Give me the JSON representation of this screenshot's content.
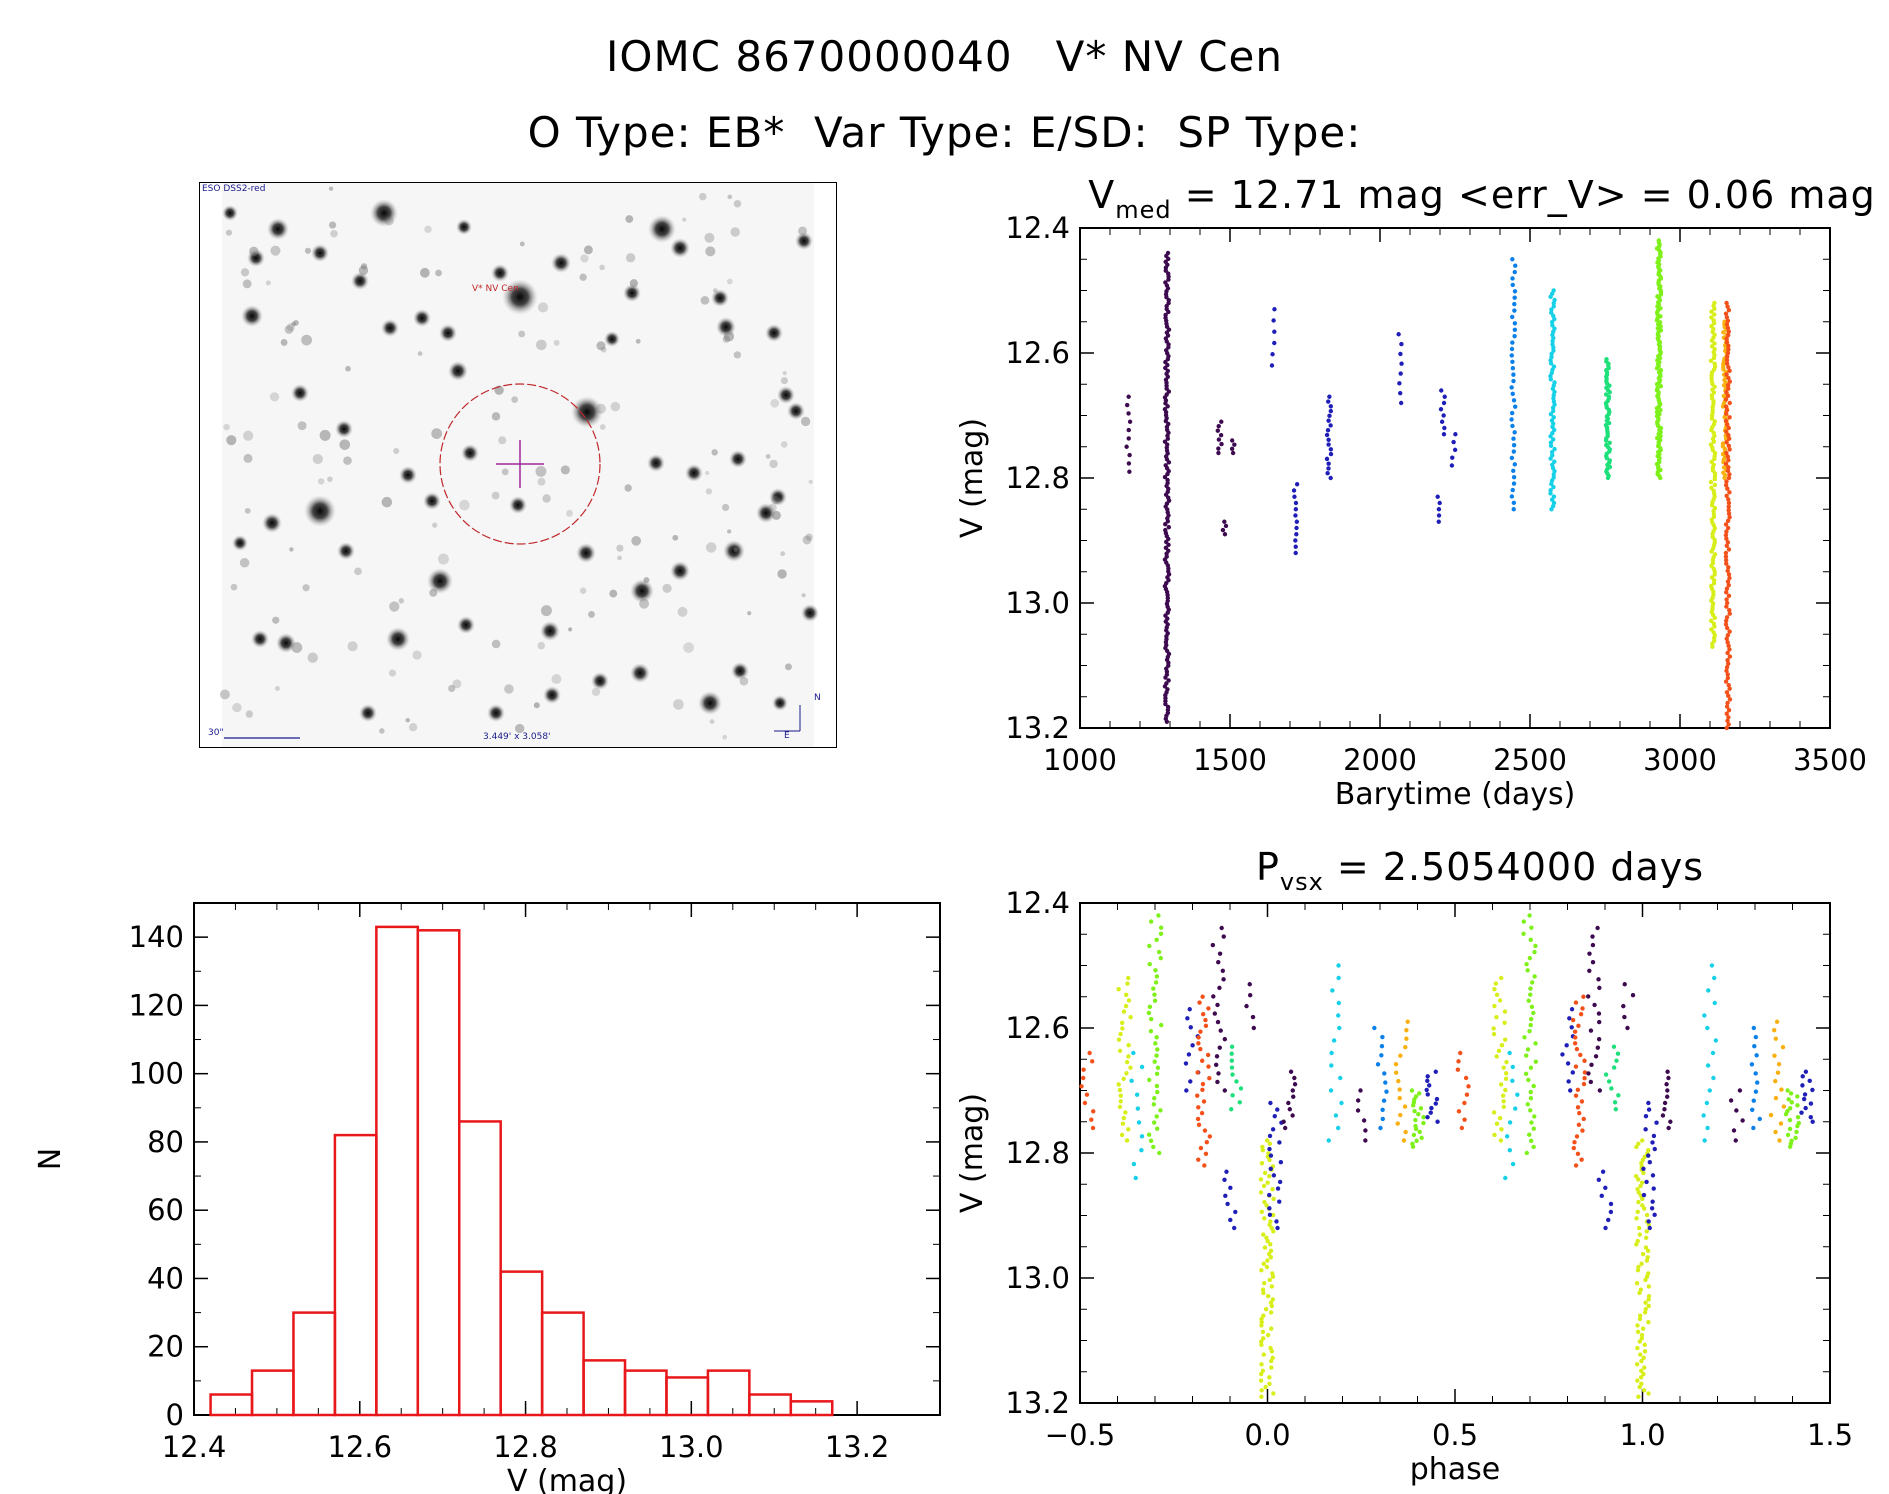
{
  "header": {
    "title_line1": "IOMC 8670000040   V* NV Cen",
    "title_line2": "O Type: EB*  Var Type: E/SD:  SP Type:"
  },
  "finder": {
    "survey_label": "ESO DSS2-red",
    "object_label": "V* NV Cen",
    "scale_label": "30\"",
    "fov_label": "3.449' x 3.058'",
    "compass_n": "N",
    "compass_e": "E"
  },
  "colors": {
    "histogram": "#e8171a",
    "circle": "#c0282b",
    "cross": "#9b2a9b",
    "palette": [
      "#3d0a4f",
      "#1f1fb8",
      "#0a80e8",
      "#16d0e8",
      "#1ee07a",
      "#7ef01a",
      "#d8ee1a",
      "#f8b010",
      "#f4501a"
    ]
  },
  "chart_data": [
    {
      "type": "scatter",
      "title": "V_med = 12.71 mag <err_V> = 0.06 mag",
      "title_main": "V",
      "title_sub": "med",
      "title_rest": " = 12.71 mag <err_V> = 0.06 mag",
      "xlabel": "Barytime (days)",
      "ylabel": "V (mag)",
      "xlim": [
        1000,
        3500
      ],
      "ylim": [
        13.2,
        12.4
      ],
      "xticks": [
        1000,
        1500,
        2000,
        2500,
        3000,
        3500
      ],
      "yticks": [
        12.4,
        12.6,
        12.8,
        13.0,
        13.2
      ],
      "xticklabels": [
        "1000",
        "1500",
        "2000",
        "2500",
        "3000",
        "3500"
      ],
      "yticklabels": [
        "12.4",
        "12.6",
        "12.8",
        "13.0",
        "13.2"
      ],
      "groups": [
        {
          "x": 1160,
          "ymin": 12.67,
          "ymax": 12.79,
          "n": 10,
          "color_index": 0
        },
        {
          "x": 1290,
          "ymin": 12.44,
          "ymax": 13.19,
          "n": 160,
          "color_index": 0
        },
        {
          "x": 1465,
          "ymin": 12.71,
          "ymax": 12.76,
          "n": 8,
          "color_index": 0
        },
        {
          "x": 1480,
          "ymin": 12.87,
          "ymax": 12.89,
          "n": 4,
          "color_index": 0
        },
        {
          "x": 1510,
          "ymin": 12.74,
          "ymax": 12.76,
          "n": 4,
          "color_index": 0
        },
        {
          "x": 1645,
          "ymin": 12.53,
          "ymax": 12.62,
          "n": 6,
          "color_index": 1
        },
        {
          "x": 1720,
          "ymin": 12.81,
          "ymax": 12.92,
          "n": 12,
          "color_index": 1
        },
        {
          "x": 1830,
          "ymin": 12.67,
          "ymax": 12.8,
          "n": 18,
          "color_index": 1
        },
        {
          "x": 2065,
          "ymin": 12.57,
          "ymax": 12.68,
          "n": 8,
          "color_index": 1
        },
        {
          "x": 2195,
          "ymin": 12.83,
          "ymax": 12.87,
          "n": 5,
          "color_index": 1
        },
        {
          "x": 2210,
          "ymin": 12.66,
          "ymax": 12.73,
          "n": 8,
          "color_index": 1
        },
        {
          "x": 2245,
          "ymin": 12.73,
          "ymax": 12.78,
          "n": 5,
          "color_index": 1
        },
        {
          "x": 2445,
          "ymin": 12.45,
          "ymax": 12.85,
          "n": 40,
          "color_index": 2
        },
        {
          "x": 2575,
          "ymin": 12.5,
          "ymax": 12.85,
          "n": 70,
          "color_index": 3
        },
        {
          "x": 2760,
          "ymin": 12.61,
          "ymax": 12.8,
          "n": 55,
          "color_index": 4
        },
        {
          "x": 2930,
          "ymin": 12.42,
          "ymax": 12.8,
          "n": 120,
          "color_index": 5
        },
        {
          "x": 3110,
          "ymin": 12.52,
          "ymax": 13.07,
          "n": 120,
          "color_index": 6
        },
        {
          "x": 3150,
          "ymin": 12.55,
          "ymax": 12.8,
          "n": 60,
          "color_index": 7
        },
        {
          "x": 3160,
          "ymin": 12.52,
          "ymax": 13.2,
          "n": 120,
          "color_index": 8
        }
      ]
    },
    {
      "type": "bar",
      "title": "",
      "xlabel": "V (mag)",
      "ylabel": "N",
      "xlim": [
        12.4,
        13.3
      ],
      "ylim": [
        0,
        150
      ],
      "xticks": [
        12.4,
        12.6,
        12.8,
        13.0,
        13.2
      ],
      "yticks": [
        0,
        20,
        40,
        60,
        80,
        100,
        120,
        140
      ],
      "xticklabels": [
        "12.4",
        "12.6",
        "12.8",
        "13.0",
        "13.2"
      ],
      "yticklabels": [
        "0",
        "20",
        "40",
        "60",
        "80",
        "100",
        "120",
        "140"
      ],
      "bin_edges": [
        12.42,
        12.47,
        12.52,
        12.57,
        12.62,
        12.67,
        12.72,
        12.77,
        12.82,
        12.87,
        12.92,
        12.97,
        13.02,
        13.07,
        13.12,
        13.17,
        13.22
      ],
      "values": [
        6,
        13,
        30,
        82,
        143,
        142,
        86,
        42,
        30,
        16,
        13,
        11,
        13,
        6,
        4,
        0
      ]
    },
    {
      "type": "scatter",
      "title": "P_vsx = 2.5054000 days",
      "title_main": "P",
      "title_sub": "vsx",
      "title_rest": " = 2.5054000 days",
      "period_days": 2.5054,
      "xlabel": "phase",
      "ylabel": "V (mag)",
      "xlim": [
        -0.5,
        1.5
      ],
      "ylim": [
        13.2,
        12.4
      ],
      "xticks": [
        -0.5,
        0.0,
        0.5,
        1.0,
        1.5
      ],
      "yticks": [
        12.4,
        12.6,
        12.8,
        13.0,
        13.2
      ],
      "xticklabels": [
        "−0.5",
        "0.0",
        "0.5",
        "1.0",
        "1.5"
      ],
      "yticklabels": [
        "12.4",
        "12.6",
        "12.8",
        "13.0",
        "13.2"
      ],
      "clusters": [
        {
          "x": -0.48,
          "ymin": 12.64,
          "ymax": 12.76,
          "n": 10,
          "color_index": 8
        },
        {
          "x": -0.38,
          "ymin": 12.52,
          "ymax": 12.78,
          "n": 30,
          "color_index": 6
        },
        {
          "x": -0.35,
          "ymin": 12.64,
          "ymax": 12.84,
          "n": 10,
          "color_index": 3
        },
        {
          "x": -0.3,
          "ymin": 12.42,
          "ymax": 12.8,
          "n": 40,
          "color_index": 5
        },
        {
          "x": -0.2,
          "ymin": 12.57,
          "ymax": 12.7,
          "n": 10,
          "color_index": 1
        },
        {
          "x": -0.17,
          "ymin": 12.55,
          "ymax": 12.82,
          "n": 30,
          "color_index": 8
        },
        {
          "x": -0.13,
          "ymin": 12.44,
          "ymax": 12.7,
          "n": 20,
          "color_index": 0
        },
        {
          "x": -0.1,
          "ymin": 12.83,
          "ymax": 12.92,
          "n": 8,
          "color_index": 1
        },
        {
          "x": -0.08,
          "ymin": 12.63,
          "ymax": 12.73,
          "n": 10,
          "color_index": 4
        },
        {
          "x": -0.04,
          "ymin": 12.53,
          "ymax": 12.6,
          "n": 5,
          "color_index": 0
        },
        {
          "x": 0.0,
          "ymin": 12.78,
          "ymax": 13.19,
          "n": 80,
          "color_index": 6
        },
        {
          "x": 0.02,
          "ymin": 12.72,
          "ymax": 12.92,
          "n": 20,
          "color_index": 1
        },
        {
          "x": 0.06,
          "ymin": 12.67,
          "ymax": 12.76,
          "n": 10,
          "color_index": 0
        },
        {
          "x": 0.18,
          "ymin": 12.5,
          "ymax": 12.78,
          "n": 15,
          "color_index": 3
        },
        {
          "x": 0.25,
          "ymin": 12.7,
          "ymax": 12.78,
          "n": 6,
          "color_index": 0
        },
        {
          "x": 0.3,
          "ymin": 12.6,
          "ymax": 12.76,
          "n": 12,
          "color_index": 2
        },
        {
          "x": 0.36,
          "ymin": 12.59,
          "ymax": 12.78,
          "n": 15,
          "color_index": 7
        },
        {
          "x": 0.4,
          "ymin": 12.7,
          "ymax": 12.79,
          "n": 20,
          "color_index": 5
        },
        {
          "x": 0.44,
          "ymin": 12.67,
          "ymax": 12.75,
          "n": 12,
          "color_index": 1
        }
      ]
    }
  ]
}
